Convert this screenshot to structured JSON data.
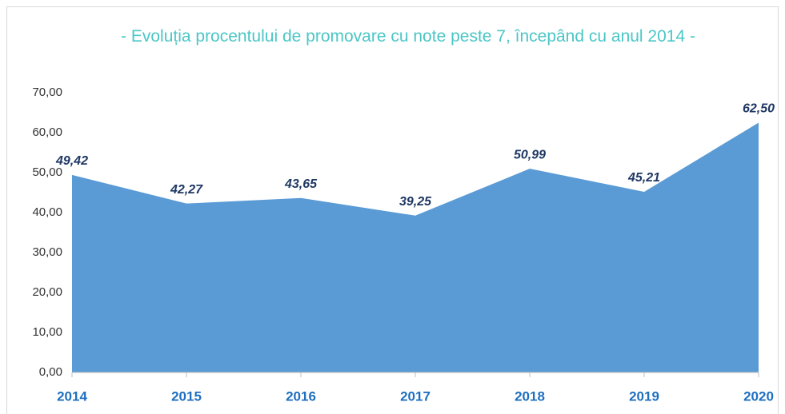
{
  "chart_data": {
    "type": "area",
    "title": "- Evoluția procentului de promovare cu note peste 7, începând cu anul 2014 -",
    "categories": [
      "2014",
      "2015",
      "2016",
      "2017",
      "2018",
      "2019",
      "2020"
    ],
    "values": [
      49.42,
      42.27,
      43.65,
      39.25,
      50.99,
      45.21,
      62.5
    ],
    "value_labels": [
      "49,42",
      "42,27",
      "43,65",
      "39,25",
      "50,99",
      "45,21",
      "62,50"
    ],
    "color": "#5b9bd5",
    "ylim": [
      0,
      70
    ],
    "yticks": [
      {
        "value": 0,
        "label": "0,00"
      },
      {
        "value": 10,
        "label": "10,00"
      },
      {
        "value": 20,
        "label": "20,00"
      },
      {
        "value": 30,
        "label": "30,00"
      },
      {
        "value": 40,
        "label": "40,00"
      },
      {
        "value": 50,
        "label": "50,00"
      },
      {
        "value": 60,
        "label": "60,00"
      },
      {
        "value": 70,
        "label": "70,00"
      }
    ],
    "grid": false
  }
}
